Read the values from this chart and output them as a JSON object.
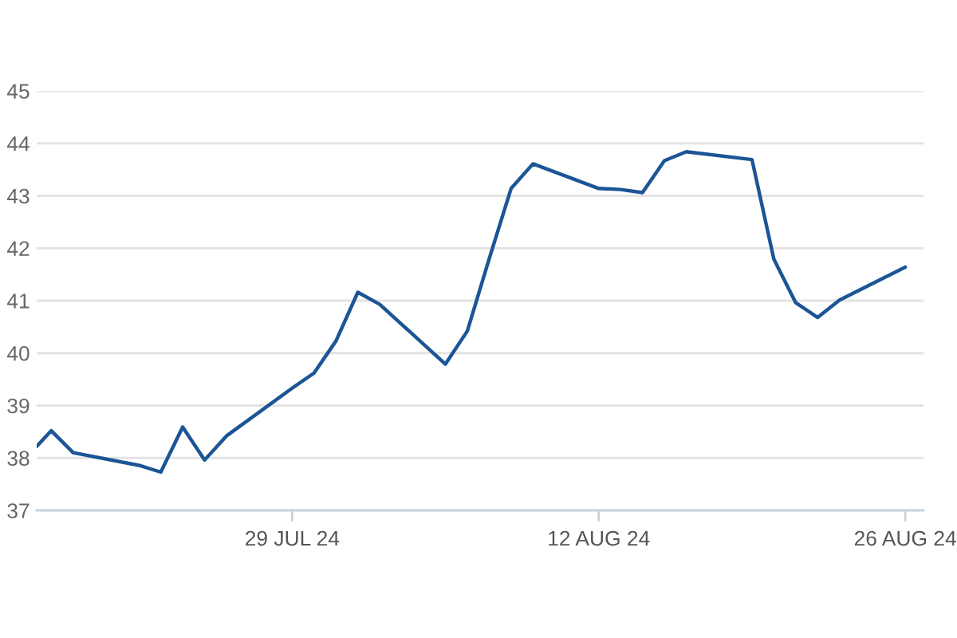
{
  "chart_data": {
    "type": "line",
    "color": "#1c5596",
    "x": [
      "2024-07-17T08:00",
      "2024-07-18",
      "2024-07-19",
      "2024-07-22",
      "2024-07-23",
      "2024-07-24",
      "2024-07-25",
      "2024-07-26",
      "2024-07-29",
      "2024-07-30",
      "2024-07-31",
      "2024-08-01",
      "2024-08-02",
      "2024-08-05",
      "2024-08-06",
      "2024-08-07",
      "2024-08-08",
      "2024-08-09",
      "2024-08-12",
      "2024-08-13",
      "2024-08-14",
      "2024-08-15",
      "2024-08-16",
      "2024-08-19",
      "2024-08-20",
      "2024-08-21",
      "2024-08-22",
      "2024-08-23",
      "2024-08-26"
    ],
    "values": [
      38.22,
      38.52,
      38.1,
      37.86,
      37.73,
      38.59,
      37.96,
      38.42,
      39.33,
      39.62,
      40.23,
      41.16,
      40.93,
      39.79,
      40.42,
      41.8,
      43.14,
      43.61,
      43.14,
      43.12,
      43.06,
      43.67,
      43.84,
      43.69,
      41.79,
      40.96,
      40.68,
      41.01,
      41.64
    ],
    "xlim": [
      "2024-07-17T08:00",
      "2024-08-26T20:00"
    ],
    "xticks": [
      {
        "value": "2024-07-29",
        "label": "29 JUL 24"
      },
      {
        "value": "2024-08-12",
        "label": "12 AUG 24"
      },
      {
        "value": "2024-08-26",
        "label": "26 AUG 24"
      }
    ],
    "ylim": [
      37,
      45
    ],
    "yticks": [
      37,
      38,
      39,
      40,
      41,
      42,
      43,
      44,
      45
    ],
    "grid": "y"
  }
}
